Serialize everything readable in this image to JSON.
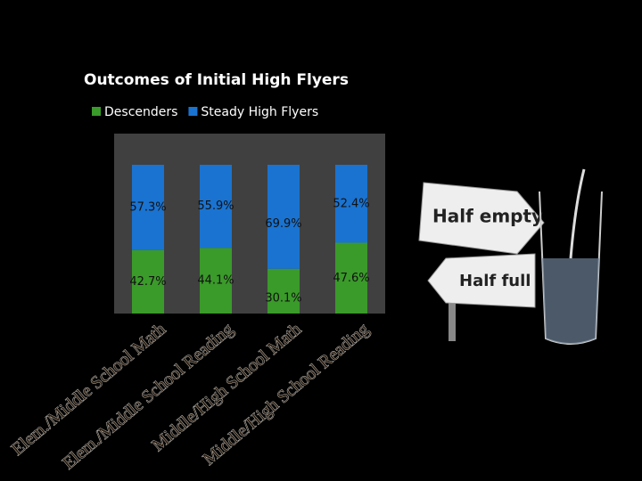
{
  "chart_data": {
    "type": "stacked-bar",
    "title": "Outcomes of Initial High Flyers",
    "categories": [
      "Elem./Middle School Math",
      "Elem./Middle School Reading",
      "Middle/High School Math",
      "Middle/High School Reading"
    ],
    "series": [
      {
        "name": "Descenders",
        "color": "#3a9a2a",
        "values": [
          42.7,
          44.1,
          30.1,
          47.6
        ],
        "value_labels": [
          "42.7%",
          "44.1%",
          "30.1%",
          "47.6%"
        ]
      },
      {
        "name": "Steady High Flyers",
        "color": "#1a73d0",
        "values": [
          57.3,
          55.9,
          69.9,
          52.4
        ],
        "value_labels": [
          "57.3%",
          "55.9%",
          "69.9%",
          "52.4%"
        ]
      }
    ],
    "ylim": [
      0,
      100
    ],
    "legend": "top"
  },
  "illustration": {
    "sign_top": "Half empty",
    "sign_bottom": "Half full"
  }
}
